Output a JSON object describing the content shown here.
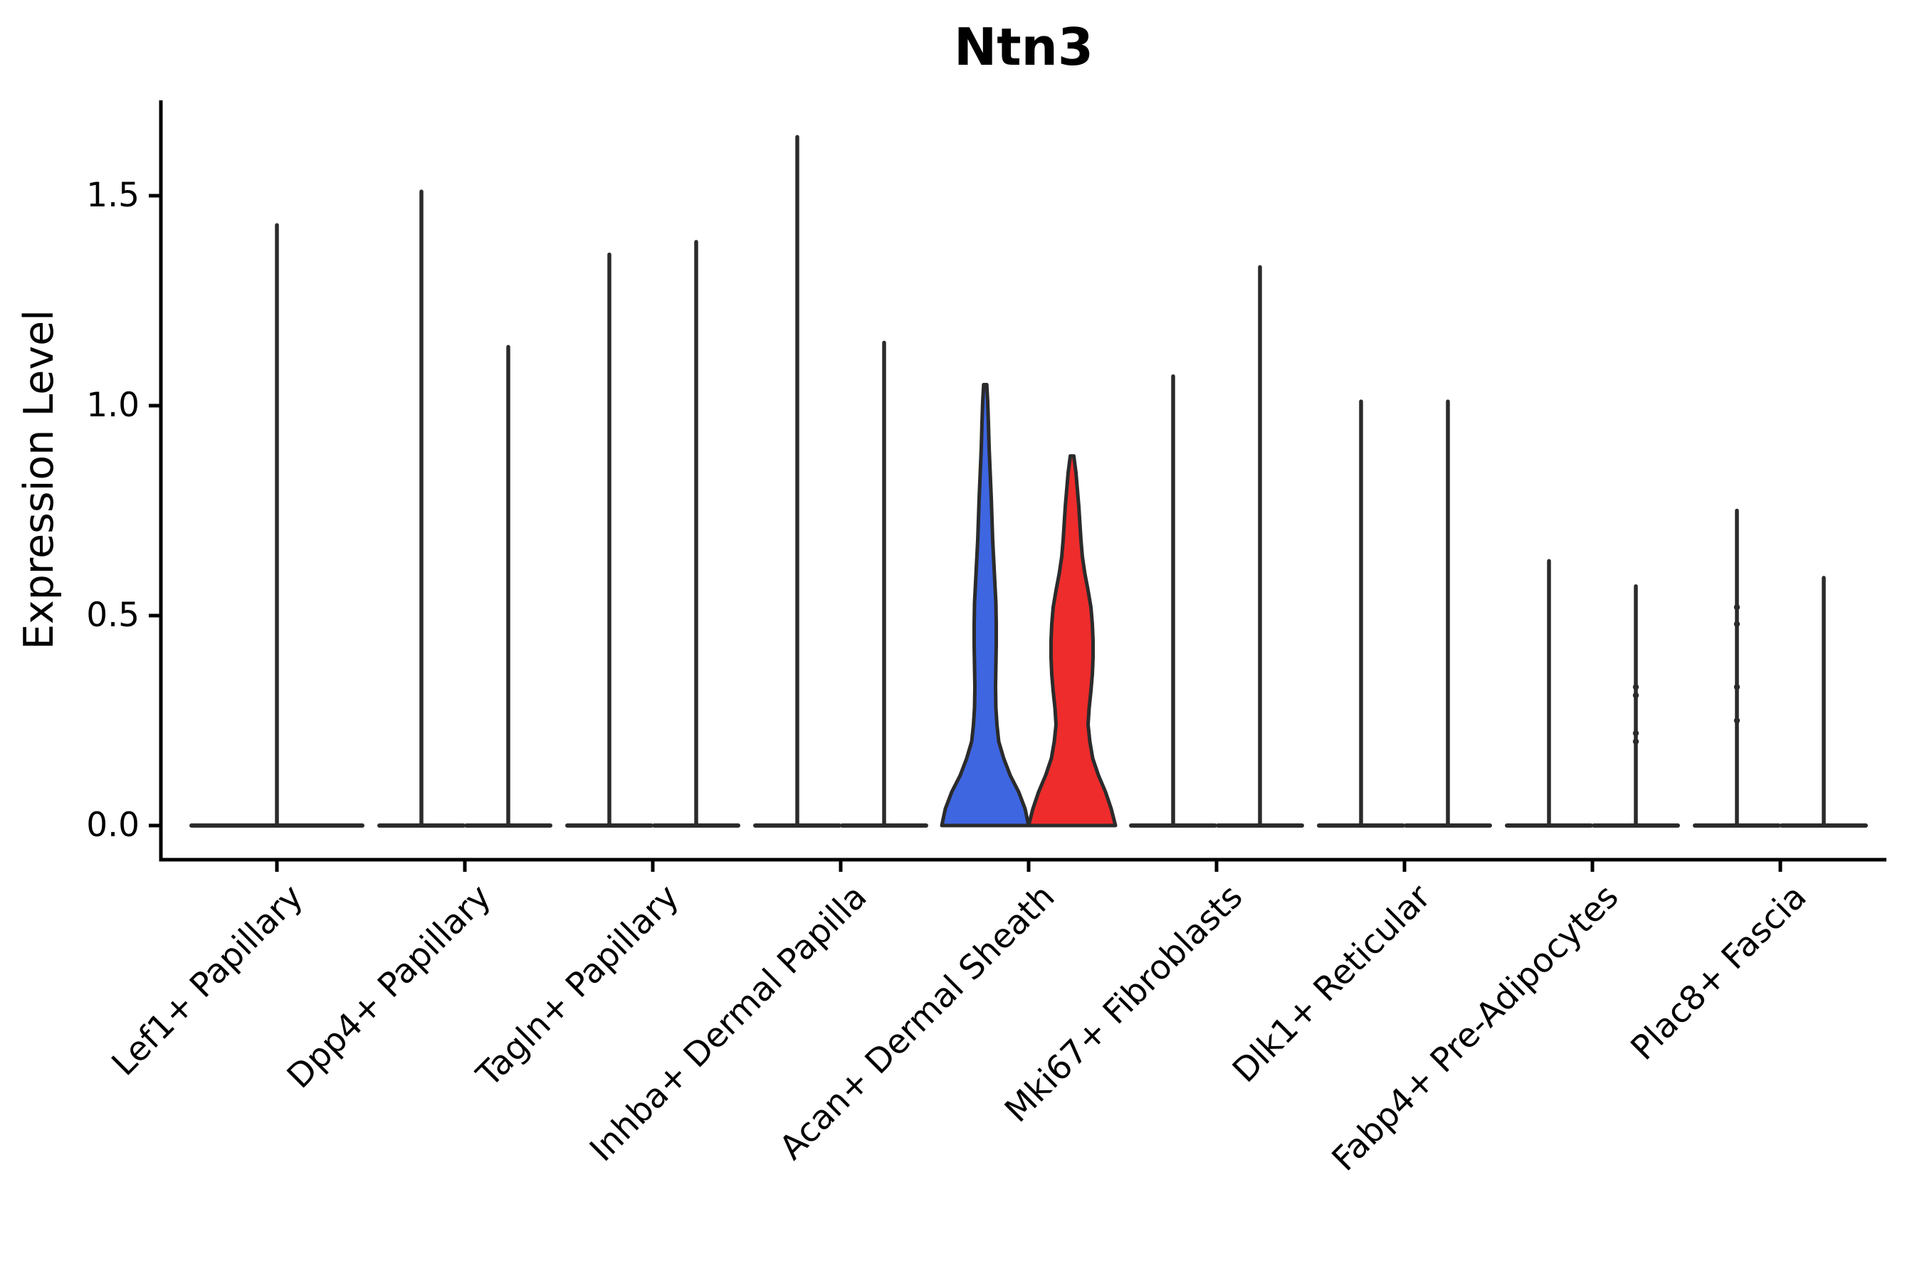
{
  "chart_data": {
    "type": "violin",
    "title": "Ntn3",
    "ylabel": "Expression Level",
    "xlabel": "",
    "grid": false,
    "legend": "none",
    "ytick_labels": [
      "0.0",
      "0.5",
      "1.0",
      "1.5"
    ],
    "ytick_values": [
      0.0,
      0.5,
      1.0,
      1.5
    ],
    "ylim": [
      -0.08,
      1.73
    ],
    "categories": [
      "Lef1+ Papillary",
      "Dpp4+ Papillary",
      "Tagln+ Papillary",
      "Inhba+ Dermal Papilla",
      "Acan+ Dermal Sheath",
      "Mki67+ Fibroblasts",
      "Dlk1+ Reticular",
      "Fabp4+ Pre-Adipocytes",
      "Plac8+ Fascia"
    ],
    "violin_data": [
      {
        "violins": [
          {
            "position": "full",
            "style": "collapsed",
            "max": 1.43
          }
        ]
      },
      {
        "violins": [
          {
            "position": "left",
            "style": "collapsed",
            "max": 1.51
          },
          {
            "position": "right",
            "style": "collapsed",
            "max": 1.14
          }
        ]
      },
      {
        "violins": [
          {
            "position": "left",
            "style": "collapsed",
            "max": 1.36
          },
          {
            "position": "right",
            "style": "collapsed",
            "max": 1.39
          }
        ]
      },
      {
        "violins": [
          {
            "position": "left",
            "style": "collapsed",
            "max": 1.64
          },
          {
            "position": "right",
            "style": "collapsed",
            "max": 1.15
          }
        ]
      },
      {
        "violins": [
          {
            "position": "left",
            "style": "filled",
            "fill": "blue",
            "max": 1.05
          },
          {
            "position": "right",
            "style": "filled",
            "fill": "red",
            "max": 0.88
          }
        ]
      },
      {
        "violins": [
          {
            "position": "left",
            "style": "collapsed",
            "max": 1.07
          },
          {
            "position": "right",
            "style": "collapsed",
            "max": 1.33
          }
        ]
      },
      {
        "violins": [
          {
            "position": "left",
            "style": "collapsed",
            "max": 1.01
          },
          {
            "position": "right",
            "style": "collapsed",
            "max": 1.01
          }
        ]
      },
      {
        "violins": [
          {
            "position": "left",
            "style": "collapsed",
            "max": 0.63
          },
          {
            "position": "right",
            "style": "collapsed",
            "max": 0.57,
            "dots": [
              0.33,
              0.31,
              0.22,
              0.2
            ]
          }
        ]
      },
      {
        "violins": [
          {
            "position": "left",
            "style": "collapsed",
            "max": 0.75,
            "dots": [
              0.52,
              0.48,
              0.33,
              0.25
            ]
          },
          {
            "position": "right",
            "style": "collapsed",
            "max": 0.59
          }
        ]
      }
    ],
    "profiles": {
      "blue": [
        [
          0,
          61
        ],
        [
          0.04,
          56
        ],
        [
          0.08,
          47
        ],
        [
          0.12,
          35
        ],
        [
          0.16,
          26
        ],
        [
          0.2,
          19
        ],
        [
          0.24,
          16.5
        ],
        [
          0.28,
          15
        ],
        [
          0.33,
          14.5
        ],
        [
          0.38,
          15
        ],
        [
          0.43,
          15.5
        ],
        [
          0.48,
          15.5
        ],
        [
          0.53,
          15
        ],
        [
          0.58,
          13.5
        ],
        [
          0.63,
          12
        ],
        [
          0.68,
          10.5
        ],
        [
          0.73,
          9.5
        ],
        [
          0.78,
          8.5
        ],
        [
          0.84,
          7
        ],
        [
          0.9,
          5.5
        ],
        [
          0.96,
          4.5
        ],
        [
          1.01,
          3.5
        ],
        [
          1.05,
          2.2
        ]
      ],
      "red": [
        [
          0,
          61
        ],
        [
          0.04,
          55
        ],
        [
          0.08,
          47
        ],
        [
          0.12,
          37
        ],
        [
          0.16,
          29
        ],
        [
          0.2,
          25
        ],
        [
          0.24,
          22.5
        ],
        [
          0.28,
          24
        ],
        [
          0.32,
          26.5
        ],
        [
          0.36,
          28.5
        ],
        [
          0.4,
          29.5
        ],
        [
          0.44,
          29.5
        ],
        [
          0.48,
          28.5
        ],
        [
          0.52,
          26.5
        ],
        [
          0.56,
          22.5
        ],
        [
          0.6,
          18
        ],
        [
          0.64,
          14.5
        ],
        [
          0.68,
          12.5
        ],
        [
          0.72,
          11
        ],
        [
          0.76,
          9.5
        ],
        [
          0.8,
          7.5
        ],
        [
          0.84,
          5.5
        ],
        [
          0.88,
          2.5
        ]
      ]
    },
    "colors": {
      "blue": "#3E66E1",
      "red": "#EE2C2C",
      "line": "#2B2B2B",
      "axis": "#000000"
    }
  }
}
